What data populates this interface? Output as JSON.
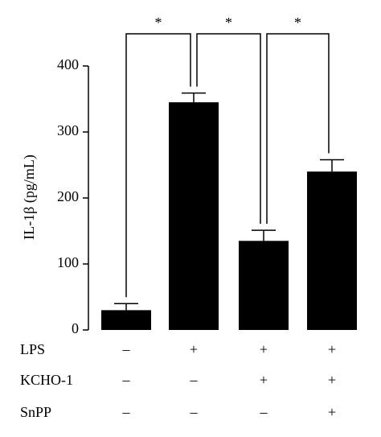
{
  "chart_data": {
    "type": "bar",
    "ylabel": "IL-1β (pg/mL)",
    "values": [
      30,
      345,
      135,
      240
    ],
    "errors": [
      10,
      14,
      16,
      18
    ],
    "color": "#000000",
    "ylim": [
      0,
      400
    ],
    "yticks": [
      0,
      100,
      200,
      300,
      400
    ],
    "significance": [
      {
        "between": [
          0,
          1
        ],
        "label": "*"
      },
      {
        "between": [
          1,
          2
        ],
        "label": "*"
      },
      {
        "between": [
          2,
          3
        ],
        "label": "*"
      }
    ],
    "treatments": [
      {
        "name": "LPS",
        "signs": [
          "–",
          "+",
          "+",
          "+"
        ]
      },
      {
        "name": "KCHO-1",
        "signs": [
          "–",
          "–",
          "+",
          "+"
        ]
      },
      {
        "name": "SnPP",
        "signs": [
          "–",
          "–",
          "–",
          "+"
        ]
      }
    ]
  }
}
